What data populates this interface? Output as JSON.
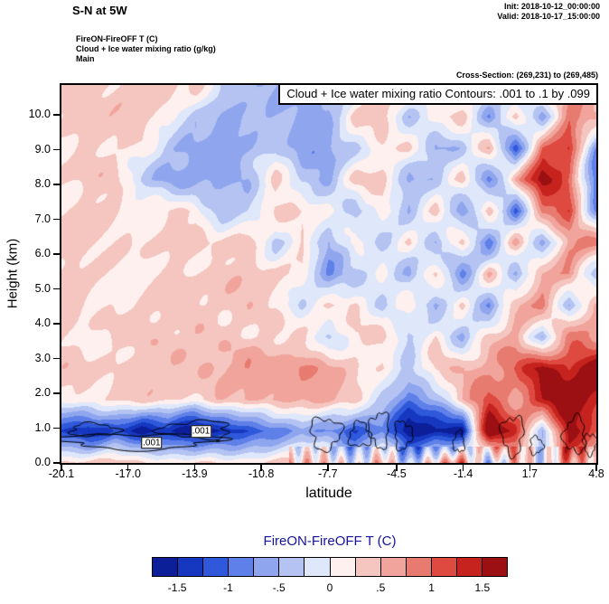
{
  "header": {
    "title": "S-N at 5W",
    "init": "Init: 2018-10-12_00:00:00",
    "valid": "Valid: 2018-10-17_15:00:00",
    "line1": "FireON-FireOFF T  (C)",
    "line2": "Cloud + Ice water mixing ratio   (g/kg)",
    "line3": "Main",
    "cross_section": "Cross-Section: (269,231) to (269,485)"
  },
  "plot": {
    "inner_title": "Cloud + Ice water mixing ratio Contours: .001 to .1 by .099",
    "xlabel": "latitude",
    "ylabel": "Height (km)",
    "x_ticks": [
      "-20.1",
      "-17.0",
      "-13.9",
      "-10.8",
      "-7.7",
      "-4.5",
      "-1.4",
      "1.7",
      "4.8"
    ],
    "y_ticks": [
      "0.0",
      "1.0",
      "2.0",
      "3.0",
      "4.0",
      "5.0",
      "6.0",
      "7.0",
      "8.0",
      "9.0",
      "10.0"
    ]
  },
  "colorbar": {
    "title": "FireON-FireOFF T  (C)",
    "title_color": "#1414a0",
    "tick_labels": [
      "-1.5",
      "-1",
      "-.5",
      "0",
      ".5",
      "1",
      "1.5"
    ]
  },
  "chart_data": {
    "type": "heatmap",
    "title": "S-N at 5W",
    "fields": [
      "FireON-FireOFF T  (C)",
      "Cloud + Ice water mixing ratio  (g/kg)"
    ],
    "xlabel": "latitude",
    "ylabel": "Height (km)",
    "units": "C",
    "x_range": [
      -20.1,
      4.8
    ],
    "y_range": [
      0,
      10.86
    ],
    "x_tick_values": [
      -20.1,
      -17.0,
      -13.9,
      -10.8,
      -7.7,
      -4.5,
      -1.4,
      1.7,
      4.8
    ],
    "y_tick_values": [
      0,
      1,
      2,
      3,
      4,
      5,
      6,
      7,
      8,
      9,
      10
    ],
    "colorbar_label": "FireON-FireOFF T  (C)",
    "colorbar_ticks": [
      -1.5,
      -1,
      -0.5,
      0,
      0.5,
      1,
      1.5
    ],
    "levels": {
      "min": -1.75,
      "step": 0.25
    },
    "colors": [
      "#0d1e99",
      "#1638c0",
      "#2f58da",
      "#5e80e8",
      "#8fa6ef",
      "#b4c3f2",
      "#dfe7fa",
      "#fdf0ee",
      "#f5c5bf",
      "#f0a49b",
      "#e87b70",
      "#de4a40",
      "#c6231f",
      "#9c0f12"
    ],
    "grid": {
      "x_start": -20.1,
      "x_step": 1.245,
      "y_start": 0,
      "y_step": 0.905,
      "values": [
        [
          0.3,
          0.3,
          0.3,
          0.3,
          0.3,
          0.3,
          0.3,
          0.3,
          0.3,
          0.3,
          0.4,
          -0.4,
          0.5,
          -0.4,
          0.6,
          0.9,
          -0.5,
          0.7,
          -0.4,
          0.8,
          0.4
        ],
        [
          -1.3,
          -1.6,
          -1.2,
          -1.8,
          -1.4,
          -1.9,
          -1.6,
          -1.2,
          -1.0,
          -0.6,
          -0.9,
          -1.3,
          -0.8,
          -1.9,
          -1.6,
          -1.9,
          2.0,
          1.3,
          -0.6,
          1.7,
          0.9
        ],
        [
          0.2,
          0.3,
          0.2,
          0.3,
          0.3,
          0.2,
          0.4,
          0.6,
          0.7,
          0.5,
          0.6,
          0.4,
          -0.5,
          -1.0,
          -0.4,
          0.5,
          1.2,
          0.7,
          1.5,
          1.9,
          1.3
        ],
        [
          0.3,
          0.3,
          0.3,
          0.3,
          0.4,
          0.3,
          0.5,
          0.7,
          0.6,
          0.8,
          0.5,
          0.3,
          0.2,
          -0.4,
          0.3,
          0.4,
          0.6,
          1.0,
          1.7,
          1.2,
          1.9
        ],
        [
          0.3,
          0.2,
          0.3,
          0.3,
          0.3,
          0.4,
          0.3,
          0.3,
          0.4,
          0.3,
          -0.4,
          0.3,
          0.3,
          -0.5,
          0.3,
          -0.6,
          0.4,
          0.7,
          -0.5,
          0.9,
          0.5
        ],
        [
          0.3,
          0.3,
          0.2,
          0.3,
          0.3,
          0.3,
          0.3,
          0.4,
          0.3,
          -0.3,
          0.3,
          0.4,
          -0.4,
          0.3,
          -0.7,
          0.4,
          -0.8,
          0.5,
          1.0,
          -0.6,
          0.7
        ],
        [
          0.3,
          0.3,
          0.3,
          0.2,
          0.3,
          0.3,
          0.4,
          0.3,
          0.3,
          0.3,
          -0.7,
          -0.4,
          0.3,
          -0.6,
          0.3,
          -0.9,
          0.5,
          -0.7,
          0.6,
          0.9,
          -0.5
        ],
        [
          0.3,
          0.3,
          0.3,
          0.3,
          0.2,
          0.3,
          0.3,
          0.3,
          -0.4,
          0.3,
          -0.6,
          0.3,
          -0.4,
          0.3,
          -0.7,
          0.4,
          -1.0,
          0.6,
          -0.6,
          0.7,
          1.0
        ],
        [
          0.3,
          0.3,
          0.3,
          0.3,
          0.3,
          0.3,
          -0.4,
          -0.3,
          0.3,
          0.3,
          0.3,
          -0.5,
          0.3,
          -0.4,
          0.4,
          -0.7,
          0.5,
          -1.2,
          0.8,
          1.3,
          -0.7
        ],
        [
          0.3,
          0.3,
          0.3,
          -0.3,
          -0.5,
          -0.6,
          -0.5,
          -0.4,
          0.3,
          -0.4,
          -0.6,
          0.3,
          0.3,
          -0.5,
          -0.3,
          0.4,
          -0.9,
          0.6,
          1.6,
          0.9,
          -1.0
        ],
        [
          0.3,
          0.3,
          0.3,
          0.3,
          -0.4,
          -0.5,
          -0.7,
          -0.5,
          -0.3,
          -0.6,
          -0.5,
          -0.4,
          0.3,
          0.3,
          -0.6,
          -0.4,
          0.5,
          -1.3,
          1.0,
          1.4,
          -0.8
        ],
        [
          0.3,
          0.3,
          0.3,
          0.3,
          0.3,
          -0.4,
          -0.5,
          -0.3,
          -0.5,
          -0.7,
          -0.6,
          0.3,
          0.3,
          -0.4,
          0.3,
          0.4,
          -0.7,
          0.5,
          -0.9,
          0.8,
          0.6
        ],
        [
          0.3,
          0.3,
          0.3,
          0.3,
          0.3,
          0.3,
          -0.3,
          -0.4,
          -0.6,
          -0.7,
          -0.5,
          -0.3,
          0.3,
          0.3,
          0.3,
          -0.4,
          0.4,
          -0.6,
          0.6,
          0.5,
          0.4
        ]
      ]
    },
    "cloud_contours": {
      "description": "Cloud + Ice water mixing ratio Contours: .001 to .1 by .099",
      "level_label": ".001",
      "blobs": [
        {
          "x": -16.5,
          "y": 0.62,
          "rx": 3.6,
          "ry": 0.22
        },
        {
          "x": -18.6,
          "y": 0.95,
          "rx": 1.1,
          "ry": 0.18
        },
        {
          "x": -13.8,
          "y": 0.95,
          "rx": 1.6,
          "ry": 0.25
        },
        {
          "x": -7.8,
          "y": 0.85,
          "rx": 0.7,
          "ry": 0.45
        },
        {
          "x": -6.2,
          "y": 0.8,
          "rx": 0.5,
          "ry": 0.35
        },
        {
          "x": -5.3,
          "y": 0.95,
          "rx": 0.45,
          "ry": 0.5
        },
        {
          "x": -4.2,
          "y": 0.8,
          "rx": 0.4,
          "ry": 0.4
        },
        {
          "x": -1.6,
          "y": 0.6,
          "rx": 0.25,
          "ry": 0.3
        },
        {
          "x": 0.9,
          "y": 0.8,
          "rx": 0.5,
          "ry": 0.55
        },
        {
          "x": 2.0,
          "y": 0.5,
          "rx": 0.3,
          "ry": 0.25
        },
        {
          "x": 3.8,
          "y": 0.8,
          "rx": 0.5,
          "ry": 0.5
        },
        {
          "x": 4.5,
          "y": 0.55,
          "rx": 0.3,
          "ry": 0.3
        }
      ],
      "labels": [
        {
          "x": -15.9,
          "y": 0.58,
          "text": ".001"
        },
        {
          "x": -13.6,
          "y": 0.9,
          "text": ".001"
        }
      ]
    }
  }
}
